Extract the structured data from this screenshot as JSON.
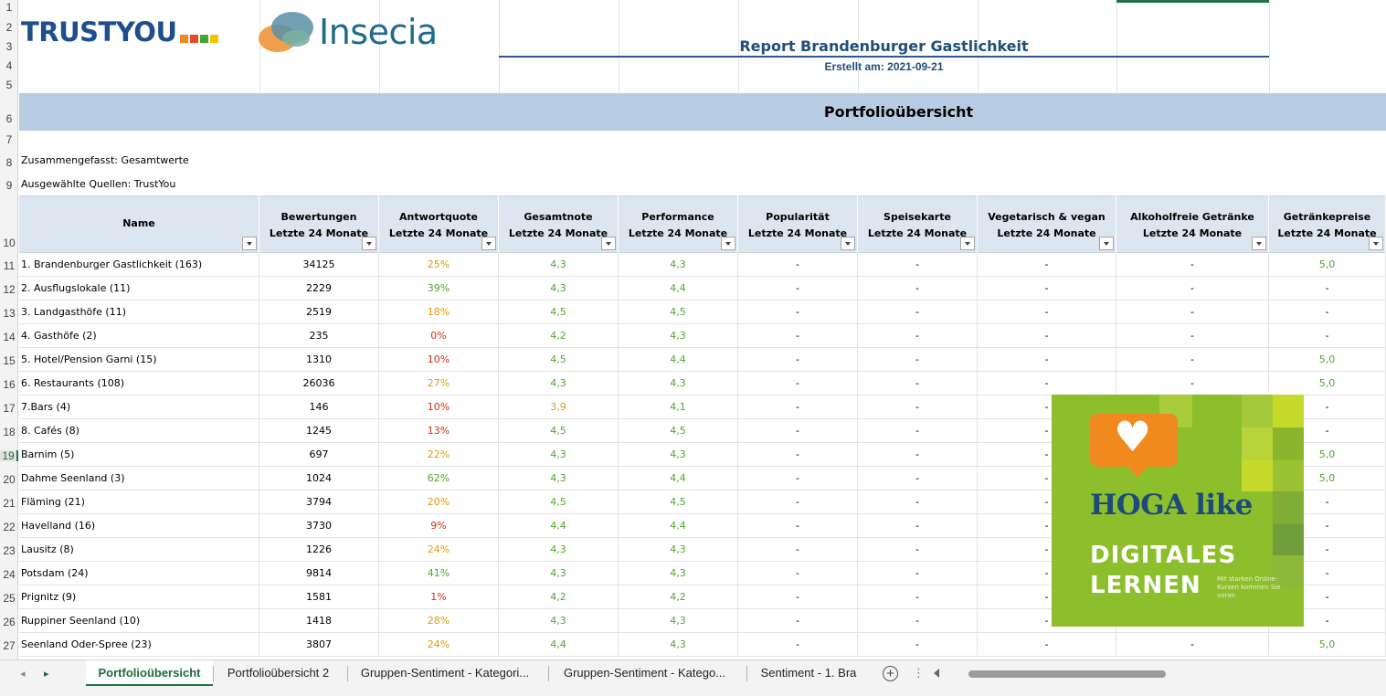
{
  "header": {
    "logo_trustyou": "TRUSTYOU",
    "logo_trustyou_colors": [
      "#f08a1e",
      "#e54b26",
      "#3fa535",
      "#f6c400"
    ],
    "logo_insecia": "Insecia",
    "report_title": "Report Brandenburger Gastlichkeit",
    "report_date": "Erstellt am: 2021-09-21",
    "banner_title": "Portfolioübersicht",
    "summary": "Zusammengefasst: Gesamtwerte",
    "sources": "Ausgewählte Quellen: TrustYou"
  },
  "row_numbers": [
    "1",
    "2",
    "3",
    "4",
    "5",
    "6",
    "7",
    "8",
    "9",
    "10",
    "11",
    "12",
    "13",
    "14",
    "15",
    "16",
    "17",
    "18",
    "19",
    "20",
    "21",
    "22",
    "23",
    "24",
    "25",
    "26",
    "27"
  ],
  "columns": [
    {
      "l1": "Name",
      "l2": ""
    },
    {
      "l1": "Bewertungen",
      "l2": "Letzte 24 Monate"
    },
    {
      "l1": "Antwortquote",
      "l2": "Letzte 24 Monate"
    },
    {
      "l1": "Gesamtnote",
      "l2": "Letzte 24 Monate"
    },
    {
      "l1": "Performance",
      "l2": "Letzte 24 Monate"
    },
    {
      "l1": "Popularität",
      "l2": "Letzte 24 Monate"
    },
    {
      "l1": "Speisekarte",
      "l2": "Letzte 24 Monate"
    },
    {
      "l1": "Vegetarisch & vegan",
      "l2": "Letzte 24 Monate"
    },
    {
      "l1": "Alkoholfreie Getränke",
      "l2": "Letzte 24 Monate"
    },
    {
      "l1": "Getränkepreise",
      "l2": "Letzte 24 Monate"
    }
  ],
  "rows": [
    {
      "name": "1. Brandenburger Gastlichkeit (163)",
      "bew": "34125",
      "ant": "25%",
      "ant_c": "orange",
      "ges": "4,3",
      "ges_c": "green",
      "perf": "4,3",
      "pop": "-",
      "spk": "-",
      "veg": "-",
      "alk": "-",
      "gp": "5,0",
      "gp_c": "green"
    },
    {
      "name": "2. Ausflugslokale (11)",
      "bew": "2229",
      "ant": "39%",
      "ant_c": "green",
      "ges": "4,3",
      "ges_c": "green",
      "perf": "4,4",
      "pop": "-",
      "spk": "-",
      "veg": "-",
      "alk": "-",
      "gp": "-",
      "gp_c": "black"
    },
    {
      "name": "3. Landgasthöfe (11)",
      "bew": "2519",
      "ant": "18%",
      "ant_c": "orange",
      "ges": "4,5",
      "ges_c": "green",
      "perf": "4,5",
      "pop": "-",
      "spk": "-",
      "veg": "-",
      "alk": "-",
      "gp": "-",
      "gp_c": "black"
    },
    {
      "name": "4. Gasthöfe (2)",
      "bew": "235",
      "ant": "0%",
      "ant_c": "red",
      "ges": "4,2",
      "ges_c": "green",
      "perf": "4,3",
      "pop": "-",
      "spk": "-",
      "veg": "-",
      "alk": "-",
      "gp": "-",
      "gp_c": "black"
    },
    {
      "name": "5. Hotel/Pension Garni (15)",
      "bew": "1310",
      "ant": "10%",
      "ant_c": "red",
      "ges": "4,5",
      "ges_c": "green",
      "perf": "4,4",
      "pop": "-",
      "spk": "-",
      "veg": "-",
      "alk": "-",
      "gp": "5,0",
      "gp_c": "green"
    },
    {
      "name": "6. Restaurants (108)",
      "bew": "26036",
      "ant": "27%",
      "ant_c": "orange",
      "ges": "4,3",
      "ges_c": "green",
      "perf": "4,3",
      "pop": "-",
      "spk": "-",
      "veg": "-",
      "alk": "-",
      "gp": "5,0",
      "gp_c": "green"
    },
    {
      "name": "7.Bars (4)",
      "bew": "146",
      "ant": "10%",
      "ant_c": "red",
      "ges": "3,9",
      "ges_c": "orange",
      "perf": "4,1",
      "pop": "-",
      "spk": "-",
      "veg": "-",
      "alk": "-",
      "gp": "-",
      "gp_c": "black"
    },
    {
      "name": "8. Cafés (8)",
      "bew": "1245",
      "ant": "13%",
      "ant_c": "red",
      "ges": "4,5",
      "ges_c": "green",
      "perf": "4,5",
      "pop": "-",
      "spk": "-",
      "veg": "-",
      "alk": "-",
      "gp": "-",
      "gp_c": "black"
    },
    {
      "name": "Barnim (5)",
      "bew": "697",
      "ant": "22%",
      "ant_c": "orange",
      "ges": "4,3",
      "ges_c": "green",
      "perf": "4,3",
      "pop": "-",
      "spk": "-",
      "veg": "-",
      "alk": "-",
      "gp": "5,0",
      "gp_c": "green"
    },
    {
      "name": "Dahme Seenland (3)",
      "bew": "1024",
      "ant": "62%",
      "ant_c": "green",
      "ges": "4,3",
      "ges_c": "green",
      "perf": "4,4",
      "pop": "-",
      "spk": "-",
      "veg": "-",
      "alk": "-",
      "gp": "5,0",
      "gp_c": "green"
    },
    {
      "name": "Fläming (21)",
      "bew": "3794",
      "ant": "20%",
      "ant_c": "orange",
      "ges": "4,5",
      "ges_c": "green",
      "perf": "4,5",
      "pop": "-",
      "spk": "-",
      "veg": "-",
      "alk": "-",
      "gp": "-",
      "gp_c": "black"
    },
    {
      "name": "Havelland (16)",
      "bew": "3730",
      "ant": "9%",
      "ant_c": "red",
      "ges": "4,4",
      "ges_c": "green",
      "perf": "4,4",
      "pop": "-",
      "spk": "-",
      "veg": "-",
      "alk": "-",
      "gp": "-",
      "gp_c": "black"
    },
    {
      "name": "Lausitz (8)",
      "bew": "1226",
      "ant": "24%",
      "ant_c": "orange",
      "ges": "4,3",
      "ges_c": "green",
      "perf": "4,3",
      "pop": "-",
      "spk": "-",
      "veg": "-",
      "alk": "-",
      "gp": "-",
      "gp_c": "black"
    },
    {
      "name": "Potsdam (24)",
      "bew": "9814",
      "ant": "41%",
      "ant_c": "green",
      "ges": "4,3",
      "ges_c": "green",
      "perf": "4,3",
      "pop": "-",
      "spk": "-",
      "veg": "-",
      "alk": "-",
      "gp": "-",
      "gp_c": "black"
    },
    {
      "name": "Prignitz (9)",
      "bew": "1581",
      "ant": "1%",
      "ant_c": "red",
      "ges": "4,2",
      "ges_c": "green",
      "perf": "4,2",
      "pop": "-",
      "spk": "-",
      "veg": "-",
      "alk": "-",
      "gp": "-",
      "gp_c": "black"
    },
    {
      "name": "Ruppiner Seenland (10)",
      "bew": "1418",
      "ant": "28%",
      "ant_c": "orange",
      "ges": "4,3",
      "ges_c": "green",
      "perf": "4,3",
      "pop": "-",
      "spk": "-",
      "veg": "-",
      "alk": "-",
      "gp": "-",
      "gp_c": "black"
    },
    {
      "name": "Seenland Oder-Spree (23)",
      "bew": "3807",
      "ant": "24%",
      "ant_c": "orange",
      "ges": "4,4",
      "ges_c": "green",
      "perf": "4,3",
      "pop": "-",
      "spk": "-",
      "veg": "-",
      "alk": "-",
      "gp": "5,0",
      "gp_c": "green"
    }
  ],
  "overlay": {
    "brand": "HOGA like",
    "line1": "DIGITALES",
    "line2": "LERNEN",
    "small": "Mit starken Online-Kursen kommen Sie voran",
    "icon": "heart-icon",
    "bubble_color": "#f08a1e",
    "bg_color": "#8dbf2c"
  },
  "tabs": [
    {
      "label": "Portfolioübersicht",
      "active": true
    },
    {
      "label": "Portfolioübersicht 2",
      "active": false
    },
    {
      "label": "Gruppen-Sentiment - Kategori...",
      "active": false
    },
    {
      "label": "Gruppen-Sentiment - Katego...",
      "active": false
    },
    {
      "label": "Sentiment - 1. Bra",
      "active": false
    }
  ],
  "colors": {
    "green": "#4ea72e",
    "orange": "#e39a0c",
    "red": "#d22f0f",
    "banner": "#b8cce4",
    "header_bg": "#dce6f1",
    "excel_green": "#217346"
  }
}
